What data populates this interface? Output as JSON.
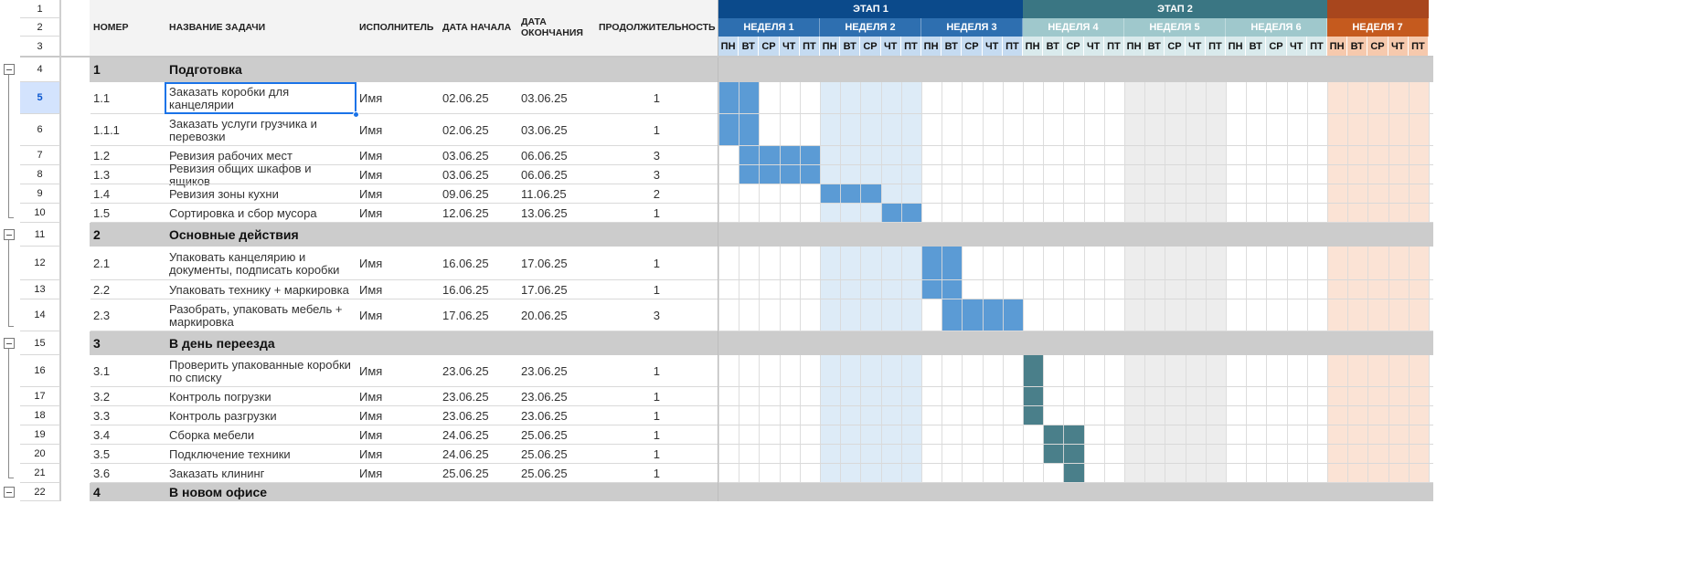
{
  "columns": {
    "number": "НОМЕР",
    "task": "НАЗВАНИЕ ЗАДАЧИ",
    "assignee": "ИСПОЛНИТЕЛЬ",
    "start": "ДАТА НАЧАЛА",
    "end": "ДАТА ОКОНЧАНИЯ",
    "duration": "ПРОДОЛЖИТЕЛЬНОСТЬ"
  },
  "stages": [
    {
      "label": "ЭТАП 1",
      "color": "#0b4a8b"
    },
    {
      "label": "ЭТАП 2",
      "color": "#3a7683"
    },
    {
      "label": "",
      "color": "#a8461d"
    }
  ],
  "weeks": [
    {
      "label": "НЕДЕЛЯ 1",
      "color": "#2e6fb0",
      "dayBg": "#c5dbf1",
      "shade": "#ffffff"
    },
    {
      "label": "НЕДЕЛЯ 2",
      "color": "#2e6fb0",
      "dayBg": "#c5dbf1",
      "shade": "#ddebf7"
    },
    {
      "label": "НЕДЕЛЯ 3",
      "color": "#2e6fb0",
      "dayBg": "#c5dbf1",
      "shade": "#ffffff"
    },
    {
      "label": "НЕДЕЛЯ 4",
      "color": "#9fc8cc",
      "dayBg": "#d9eaec",
      "shade": "#ffffff"
    },
    {
      "label": "НЕДЕЛЯ 5",
      "color": "#9fc8cc",
      "dayBg": "#d9eaec",
      "shade": "#ededed"
    },
    {
      "label": "НЕДЕЛЯ 6",
      "color": "#9fc8cc",
      "dayBg": "#d9eaec",
      "shade": "#ffffff"
    },
    {
      "label": "НЕДЕЛЯ 7",
      "color": "#c55a1e",
      "dayBg": "#f6c9ad",
      "shade": "#fbe3d5"
    }
  ],
  "days": [
    "ПН",
    "ВТ",
    "СР",
    "ЧТ",
    "ПТ"
  ],
  "barColors": {
    "stage1": "#5b9bd5",
    "stage2": "#4a7f8a"
  },
  "selectedCell": "B5",
  "rows": [
    {
      "rn": "1",
      "type": "blank"
    },
    {
      "rn": "2",
      "type": "blank"
    },
    {
      "rn": "3",
      "type": "blank"
    },
    {
      "rn": "4",
      "type": "group",
      "num": "1",
      "name": "Подготовка"
    },
    {
      "rn": "5",
      "type": "task",
      "num": "1.1",
      "name": "Заказать коробки для канцелярии",
      "who": "Имя",
      "start": "02.06.25",
      "end": "03.06.25",
      "dur": "1",
      "bar": [
        0,
        2
      ],
      "barColor": "#5b9bd5"
    },
    {
      "rn": "6",
      "type": "task",
      "num": "1.1.1",
      "name": "Заказать услуги грузчика и перевозки",
      "who": "Имя",
      "start": "02.06.25",
      "end": "03.06.25",
      "dur": "1",
      "bar": [
        0,
        2
      ],
      "barColor": "#5b9bd5"
    },
    {
      "rn": "7",
      "type": "task",
      "num": "1.2",
      "name": "Ревизия рабочих мест",
      "who": "Имя",
      "start": "03.06.25",
      "end": "06.06.25",
      "dur": "3",
      "bar": [
        1,
        5
      ],
      "barColor": "#5b9bd5"
    },
    {
      "rn": "8",
      "type": "task",
      "num": "1.3",
      "name": "Ревизия общих шкафов и ящиков",
      "who": "Имя",
      "start": "03.06.25",
      "end": "06.06.25",
      "dur": "3",
      "bar": [
        1,
        5
      ],
      "barColor": "#5b9bd5"
    },
    {
      "rn": "9",
      "type": "task",
      "num": "1.4",
      "name": "Ревизия зоны кухни",
      "who": "Имя",
      "start": "09.06.25",
      "end": "11.06.25",
      "dur": "2",
      "bar": [
        5,
        8
      ],
      "barColor": "#5b9bd5"
    },
    {
      "rn": "10",
      "type": "task",
      "num": "1.5",
      "name": "Сортировка и сбор мусора",
      "who": "Имя",
      "start": "12.06.25",
      "end": "13.06.25",
      "dur": "1",
      "bar": [
        8,
        10
      ],
      "barColor": "#5b9bd5"
    },
    {
      "rn": "11",
      "type": "group",
      "num": "2",
      "name": "Основные действия"
    },
    {
      "rn": "12",
      "type": "task",
      "num": "2.1",
      "name": "Упаковать канцелярию и документы, подписать коробки",
      "who": "Имя",
      "start": "16.06.25",
      "end": "17.06.25",
      "dur": "1",
      "bar": [
        10,
        12
      ],
      "barColor": "#5b9bd5"
    },
    {
      "rn": "13",
      "type": "task",
      "num": "2.2",
      "name": "Упаковать технику + маркировка",
      "who": "Имя",
      "start": "16.06.25",
      "end": "17.06.25",
      "dur": "1",
      "bar": [
        10,
        12
      ],
      "barColor": "#5b9bd5"
    },
    {
      "rn": "14",
      "type": "task",
      "num": "2.3",
      "name": "Разобрать, упаковать мебель + маркировка",
      "who": "Имя",
      "start": "17.06.25",
      "end": "20.06.25",
      "dur": "3",
      "bar": [
        11,
        15
      ],
      "barColor": "#5b9bd5"
    },
    {
      "rn": "15",
      "type": "group",
      "num": "3",
      "name": "В день переезда"
    },
    {
      "rn": "16",
      "type": "task",
      "num": "3.1",
      "name": "Проверить упакованные коробки по списку",
      "who": "Имя",
      "start": "23.06.25",
      "end": "23.06.25",
      "dur": "1",
      "bar": [
        15,
        16
      ],
      "barColor": "#4a7f8a"
    },
    {
      "rn": "17",
      "type": "task",
      "num": "3.2",
      "name": "Контроль погрузки",
      "who": "Имя",
      "start": "23.06.25",
      "end": "23.06.25",
      "dur": "1",
      "bar": [
        15,
        16
      ],
      "barColor": "#4a7f8a"
    },
    {
      "rn": "18",
      "type": "task",
      "num": "3.3",
      "name": "Контроль разгрузки",
      "who": "Имя",
      "start": "23.06.25",
      "end": "23.06.25",
      "dur": "1",
      "bar": [
        15,
        16
      ],
      "barColor": "#4a7f8a"
    },
    {
      "rn": "19",
      "type": "task",
      "num": "3.4",
      "name": "Сборка мебели",
      "who": "Имя",
      "start": "24.06.25",
      "end": "25.06.25",
      "dur": "1",
      "bar": [
        16,
        18
      ],
      "barColor": "#4a7f8a"
    },
    {
      "rn": "20",
      "type": "task",
      "num": "3.5",
      "name": "Подключение техники",
      "who": "Имя",
      "start": "24.06.25",
      "end": "25.06.25",
      "dur": "1",
      "bar": [
        16,
        18
      ],
      "barColor": "#4a7f8a"
    },
    {
      "rn": "21",
      "type": "task",
      "num": "3.6",
      "name": "Заказать клининг",
      "who": "Имя",
      "start": "25.06.25",
      "end": "25.06.25",
      "dur": "1",
      "bar": [
        17,
        18
      ],
      "barColor": "#4a7f8a"
    },
    {
      "rn": "22",
      "type": "group",
      "num": "4",
      "name": "В новом офисе"
    }
  ]
}
